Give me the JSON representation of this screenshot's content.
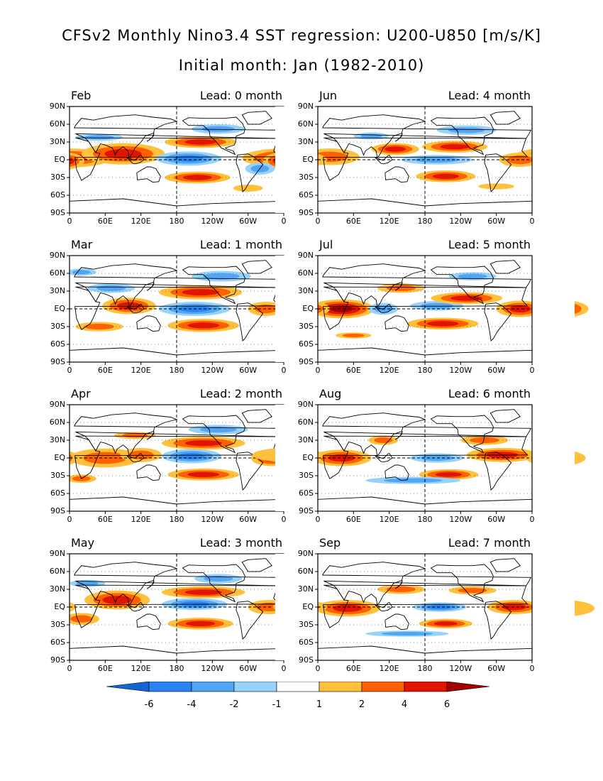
{
  "header": {
    "title": "CFSv2 Monthly Nino3.4 SST regression: U200-U850 [m/s/K]",
    "subtitle": "Initial month: Jan (1982-2010)"
  },
  "chart_data": {
    "type": "heatmap",
    "field": "U200-U850 regression on Nino3.4 SST",
    "lat_ticks": [
      "90N",
      "60N",
      "30N",
      "EQ",
      "30S",
      "60S",
      "90S"
    ],
    "lon_ticks": [
      "0",
      "60E",
      "120E",
      "180",
      "120W",
      "60W",
      "0"
    ],
    "lon_range": [
      0,
      360
    ],
    "lat_range": [
      -90,
      90
    ],
    "contour_levels": [
      -6,
      -4,
      -2,
      -1,
      1,
      2,
      4,
      6
    ],
    "colorbar": {
      "labels": [
        "-6",
        "-4",
        "-2",
        "-1",
        "1",
        "2",
        "4",
        "6"
      ],
      "colors": [
        "#1464d2",
        "#2882f0",
        "#50a5f5",
        "#96d2fa",
        "#ffffff",
        "#ffc03c",
        "#ff6000",
        "#e11400",
        "#a50000"
      ]
    },
    "panels": [
      {
        "month": "Feb",
        "lead": "Lead: 0 month",
        "features": [
          {
            "lon": 0,
            "lat": 3,
            "dlon": 70,
            "dlat": 16,
            "v": 5
          },
          {
            "lon": 90,
            "lat": 10,
            "dlon": 70,
            "dlat": 18,
            "v": 5
          },
          {
            "lon": 355,
            "lat": -2,
            "dlon": 30,
            "dlat": 14,
            "v": 5
          },
          {
            "lon": 200,
            "lat": 2,
            "dlon": 55,
            "dlat": 12,
            "v": -5
          },
          {
            "lon": 220,
            "lat": 30,
            "dlon": 60,
            "dlat": 10,
            "v": 4
          },
          {
            "lon": 215,
            "lat": -30,
            "dlon": 55,
            "dlat": 10,
            "v": 4
          },
          {
            "lon": 250,
            "lat": 52,
            "dlon": 45,
            "dlat": 8,
            "v": -3
          },
          {
            "lon": 50,
            "lat": 38,
            "dlon": 40,
            "dlat": 6,
            "v": -2
          },
          {
            "lon": 320,
            "lat": -15,
            "dlon": 25,
            "dlat": 10,
            "v": -2
          },
          {
            "lon": 300,
            "lat": -48,
            "dlon": 25,
            "dlat": 6,
            "v": 1.5
          }
        ]
      },
      {
        "month": "Jun",
        "lead": "Lead: 4 month",
        "features": [
          {
            "lon": 20,
            "lat": 5,
            "dlon": 50,
            "dlat": 14,
            "v": 3
          },
          {
            "lon": 130,
            "lat": 18,
            "dlon": 40,
            "dlat": 10,
            "v": 4
          },
          {
            "lon": 215,
            "lat": -28,
            "dlon": 50,
            "dlat": 10,
            "v": 5
          },
          {
            "lon": 230,
            "lat": 22,
            "dlon": 55,
            "dlat": 10,
            "v": 4
          },
          {
            "lon": 200,
            "lat": 0,
            "dlon": 60,
            "dlat": 8,
            "v": -3
          },
          {
            "lon": 340,
            "lat": 0,
            "dlon": 35,
            "dlat": 12,
            "v": 3
          },
          {
            "lon": 250,
            "lat": 50,
            "dlon": 50,
            "dlat": 8,
            "v": -2
          },
          {
            "lon": 90,
            "lat": 40,
            "dlon": 30,
            "dlat": 6,
            "v": -2
          },
          {
            "lon": 300,
            "lat": -45,
            "dlon": 30,
            "dlat": 5,
            "v": 1.5
          }
        ]
      },
      {
        "month": "Mar",
        "lead": "Lead: 1 month",
        "features": [
          {
            "lon": 100,
            "lat": 5,
            "dlon": 45,
            "dlat": 14,
            "v": 4
          },
          {
            "lon": 210,
            "lat": 0,
            "dlon": 60,
            "dlat": 12,
            "v": -5
          },
          {
            "lon": 220,
            "lat": 28,
            "dlon": 70,
            "dlat": 12,
            "v": 5
          },
          {
            "lon": 225,
            "lat": -28,
            "dlon": 60,
            "dlat": 11,
            "v": 5
          },
          {
            "lon": 330,
            "lat": 0,
            "dlon": 30,
            "dlat": 12,
            "v": 3
          },
          {
            "lon": 70,
            "lat": 35,
            "dlon": 40,
            "dlat": 8,
            "v": -3
          },
          {
            "lon": 255,
            "lat": 55,
            "dlon": 50,
            "dlat": 9,
            "v": -3
          },
          {
            "lon": 50,
            "lat": -30,
            "dlon": 40,
            "dlat": 8,
            "v": 2
          },
          {
            "lon": 20,
            "lat": 62,
            "dlon": 25,
            "dlat": 6,
            "v": -2
          }
        ]
      },
      {
        "month": "Jul",
        "lead": "Lead: 5 month",
        "features": [
          {
            "lon": 40,
            "lat": 0,
            "dlon": 55,
            "dlat": 16,
            "v": 6
          },
          {
            "lon": 110,
            "lat": 0,
            "dlon": 25,
            "dlat": 10,
            "v": -3
          },
          {
            "lon": 200,
            "lat": 5,
            "dlon": 45,
            "dlat": 8,
            "v": -3
          },
          {
            "lon": 210,
            "lat": -25,
            "dlon": 60,
            "dlat": 10,
            "v": 5
          },
          {
            "lon": 250,
            "lat": 18,
            "dlon": 60,
            "dlat": 10,
            "v": 4
          },
          {
            "lon": 340,
            "lat": 0,
            "dlon": 40,
            "dlat": 14,
            "v": 5
          },
          {
            "lon": 140,
            "lat": 35,
            "dlon": 40,
            "dlat": 8,
            "v": 3
          },
          {
            "lon": 260,
            "lat": 55,
            "dlon": 40,
            "dlat": 7,
            "v": -2
          },
          {
            "lon": 60,
            "lat": -45,
            "dlon": 30,
            "dlat": 5,
            "v": 2
          }
        ]
      },
      {
        "month": "Apr",
        "lead": "Lead: 2 month",
        "features": [
          {
            "lon": 60,
            "lat": 0,
            "dlon": 60,
            "dlat": 16,
            "v": 3
          },
          {
            "lon": 120,
            "lat": 5,
            "dlon": 35,
            "dlat": 12,
            "v": 3
          },
          {
            "lon": 205,
            "lat": 3,
            "dlon": 50,
            "dlat": 12,
            "v": -5
          },
          {
            "lon": 225,
            "lat": 25,
            "dlon": 70,
            "dlat": 11,
            "v": 5
          },
          {
            "lon": 225,
            "lat": -28,
            "dlon": 60,
            "dlat": 10,
            "v": 4
          },
          {
            "lon": 340,
            "lat": 0,
            "dlon": 35,
            "dlat": 14,
            "v": 4
          },
          {
            "lon": 250,
            "lat": 48,
            "dlon": 50,
            "dlat": 8,
            "v": -3
          },
          {
            "lon": 110,
            "lat": 38,
            "dlon": 35,
            "dlat": 6,
            "v": 2
          },
          {
            "lon": 20,
            "lat": -35,
            "dlon": 25,
            "dlat": 7,
            "v": 2
          }
        ]
      },
      {
        "month": "Aug",
        "lead": "Lead: 6 month",
        "features": [
          {
            "lon": 40,
            "lat": 0,
            "dlon": 50,
            "dlat": 14,
            "v": 5
          },
          {
            "lon": 200,
            "lat": 0,
            "dlon": 45,
            "dlat": 8,
            "v": -3
          },
          {
            "lon": 220,
            "lat": -28,
            "dlon": 50,
            "dlat": 9,
            "v": 4
          },
          {
            "lon": 310,
            "lat": 5,
            "dlon": 60,
            "dlat": 12,
            "v": 4
          },
          {
            "lon": 160,
            "lat": -38,
            "dlon": 80,
            "dlat": 6,
            "v": -2
          },
          {
            "lon": 110,
            "lat": 30,
            "dlon": 25,
            "dlat": 8,
            "v": 2
          },
          {
            "lon": 280,
            "lat": 30,
            "dlon": 40,
            "dlat": 8,
            "v": 2
          }
        ]
      },
      {
        "month": "May",
        "lead": "Lead: 3 month",
        "features": [
          {
            "lon": 80,
            "lat": 12,
            "dlon": 55,
            "dlat": 16,
            "v": 5
          },
          {
            "lon": 210,
            "lat": 5,
            "dlon": 55,
            "dlat": 10,
            "v": -5
          },
          {
            "lon": 225,
            "lat": 25,
            "dlon": 70,
            "dlat": 10,
            "v": 5
          },
          {
            "lon": 220,
            "lat": -28,
            "dlon": 55,
            "dlat": 10,
            "v": 5
          },
          {
            "lon": 335,
            "lat": 0,
            "dlon": 35,
            "dlat": 12,
            "v": 3
          },
          {
            "lon": 250,
            "lat": 48,
            "dlon": 40,
            "dlat": 8,
            "v": -3
          },
          {
            "lon": 20,
            "lat": -20,
            "dlon": 30,
            "dlat": 10,
            "v": 2
          },
          {
            "lon": 30,
            "lat": 40,
            "dlon": 30,
            "dlat": 6,
            "v": -2
          }
        ]
      },
      {
        "month": "Sep",
        "lead": "Lead: 7 month",
        "features": [
          {
            "lon": 50,
            "lat": -2,
            "dlon": 55,
            "dlat": 14,
            "v": 4
          },
          {
            "lon": 205,
            "lat": 0,
            "dlon": 45,
            "dlat": 8,
            "v": -4
          },
          {
            "lon": 215,
            "lat": -28,
            "dlon": 45,
            "dlat": 8,
            "v": 4
          },
          {
            "lon": 330,
            "lat": 0,
            "dlon": 45,
            "dlat": 12,
            "v": 4
          },
          {
            "lon": 140,
            "lat": 30,
            "dlon": 40,
            "dlat": 8,
            "v": 2
          },
          {
            "lon": 150,
            "lat": -45,
            "dlon": 70,
            "dlat": 5,
            "v": -2
          },
          {
            "lon": 260,
            "lat": 28,
            "dlon": 40,
            "dlat": 7,
            "v": 2
          }
        ]
      }
    ]
  }
}
